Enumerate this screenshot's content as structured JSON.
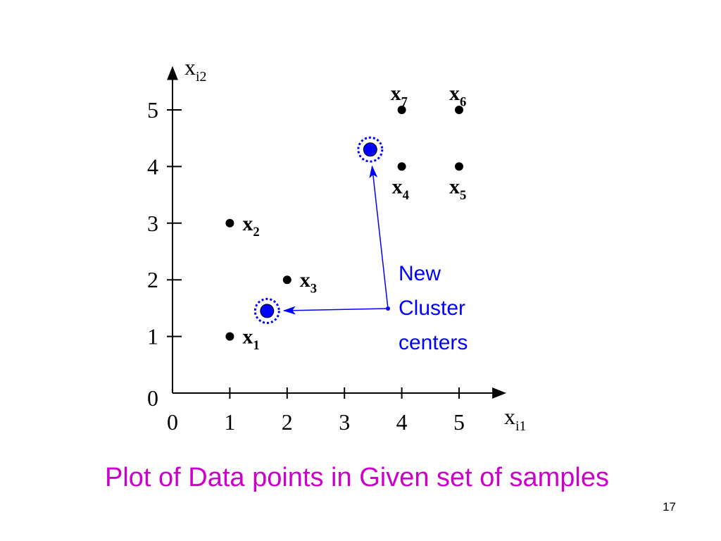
{
  "chart_data": {
    "type": "scatter",
    "title": "Plot of Data points in Given set of samples",
    "page_number": "17",
    "x_axis_label": {
      "text": "x",
      "sub": "i1"
    },
    "y_axis_label": {
      "text": "x",
      "sub": "i2"
    },
    "xlim": [
      0,
      5.8
    ],
    "ylim": [
      0,
      5.75
    ],
    "xticks": [
      0,
      1,
      2,
      3,
      4,
      5
    ],
    "yticks": [
      0,
      1,
      2,
      3,
      4,
      5
    ],
    "points": {
      "color": "#000000",
      "x": [
        1,
        1,
        2,
        4,
        5,
        5,
        4
      ],
      "y": [
        1,
        3,
        2,
        4,
        4,
        5,
        5
      ],
      "labels": [
        {
          "text": "x",
          "sub": "1"
        },
        {
          "text": "x",
          "sub": "2"
        },
        {
          "text": "x",
          "sub": "3"
        },
        {
          "text": "x",
          "sub": "4"
        },
        {
          "text": "x",
          "sub": "5"
        },
        {
          "text": "x",
          "sub": "6"
        },
        {
          "text": "x",
          "sub": "7"
        }
      ]
    },
    "centers": {
      "color": "#0000ff",
      "x": [
        1.65,
        3.45
      ],
      "y": [
        1.45,
        4.3
      ]
    },
    "annotation": [
      "New",
      "Cluster",
      "centers"
    ]
  }
}
